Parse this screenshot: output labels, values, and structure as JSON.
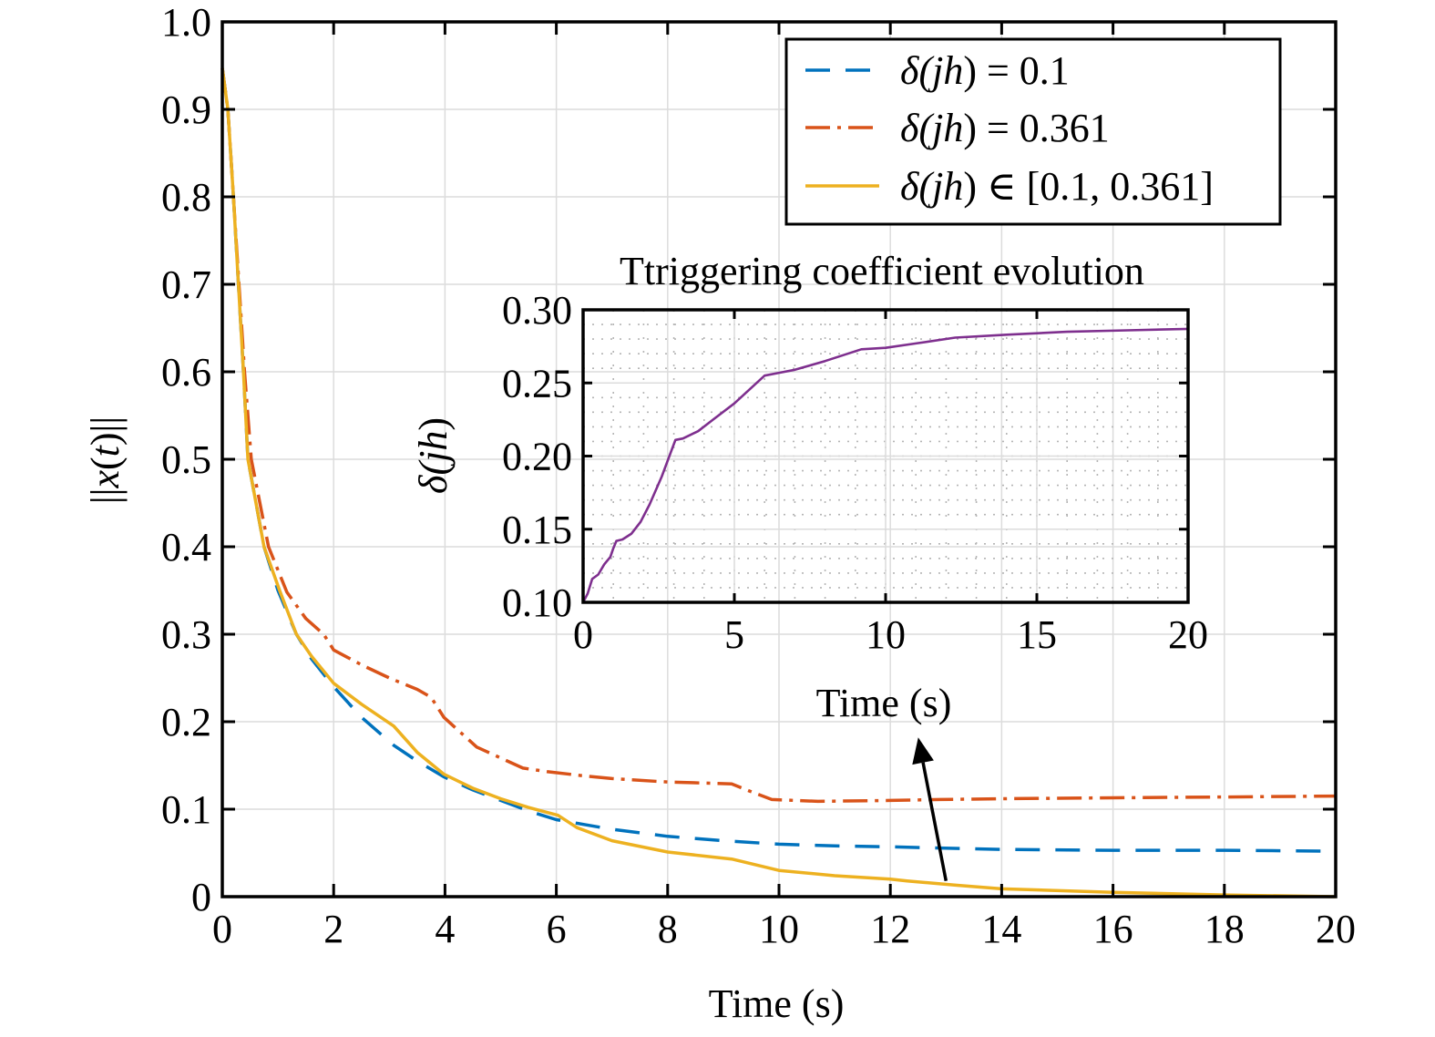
{
  "chart_data": [
    {
      "id": "main",
      "type": "line",
      "title": "",
      "xlabel": "Time (s)",
      "ylabel": "||x(t)||",
      "xlim": [
        0,
        20
      ],
      "ylim": [
        0,
        1.0
      ],
      "xticks": [
        0,
        2,
        4,
        6,
        8,
        10,
        12,
        14,
        16,
        18,
        20
      ],
      "xtick_labels": [
        "0",
        "2",
        "4",
        "6",
        "8",
        "10",
        "12",
        "14",
        "16",
        "18",
        "20"
      ],
      "yticks": [
        0,
        0.1,
        0.2,
        0.3,
        0.4,
        0.5,
        0.6,
        0.7,
        0.8,
        0.9,
        1.0
      ],
      "ytick_labels": [
        "0",
        "0.1",
        "0.2",
        "0.3",
        "0.4",
        "0.5",
        "0.6",
        "0.7",
        "0.8",
        "0.9",
        "1.0"
      ],
      "grid": true,
      "legend": {
        "placement": "top-right",
        "entries": [
          {
            "series": "delta_fixed_low",
            "label_prefix": "δ(",
            "label_var": "jh",
            "label_suffix": ") = 0.1"
          },
          {
            "series": "delta_fixed_high",
            "label_prefix": "δ(",
            "label_var": "jh",
            "label_suffix": ") = 0.361"
          },
          {
            "series": "delta_adaptive",
            "label_prefix": "δ(",
            "label_var": "jh",
            "label_suffix": ") ∈ [0.1, 0.361]"
          }
        ]
      },
      "series": [
        {
          "id": "delta_fixed_low",
          "name": "δ(jh) = 0.1",
          "color": "#0072BD",
          "style": "dashed",
          "x": [
            0,
            0.1,
            0.2,
            0.38,
            0.46,
            0.75,
            1.0,
            1.33,
            1.6,
            2.0,
            2.5,
            3.08,
            3.5,
            3.98,
            4.5,
            5.0,
            5.5,
            6.0,
            7.0,
            8.0,
            9.0,
            10.0,
            11.0,
            12.0,
            13.3,
            14.0,
            16.0,
            18.0,
            20.0
          ],
          "y": [
            0.947,
            0.9,
            0.8,
            0.6,
            0.5,
            0.4,
            0.35,
            0.3,
            0.272,
            0.24,
            0.205,
            0.173,
            0.155,
            0.137,
            0.122,
            0.11,
            0.098,
            0.088,
            0.077,
            0.069,
            0.064,
            0.06,
            0.058,
            0.057,
            0.055,
            0.054,
            0.053,
            0.053,
            0.052
          ]
        },
        {
          "id": "delta_fixed_high",
          "name": "δ(jh) = 0.361",
          "color": "#D95319",
          "style": "dashdot",
          "x": [
            0,
            0.1,
            0.2,
            0.4,
            0.52,
            0.83,
            1.16,
            1.5,
            1.82,
            2.0,
            2.5,
            3.0,
            3.5,
            3.75,
            3.98,
            4.57,
            5.4,
            5.83,
            6.5,
            7.0,
            8.0,
            9.15,
            9.5,
            9.87,
            10.7,
            12.0,
            12.9,
            14.0,
            16.0,
            18.0,
            20.0
          ],
          "y": [
            0.947,
            0.9,
            0.8,
            0.6,
            0.5,
            0.4,
            0.348,
            0.318,
            0.3,
            0.282,
            0.265,
            0.25,
            0.237,
            0.228,
            0.205,
            0.171,
            0.147,
            0.143,
            0.138,
            0.135,
            0.131,
            0.129,
            0.12,
            0.111,
            0.109,
            0.11,
            0.111,
            0.112,
            0.113,
            0.114,
            0.115
          ]
        },
        {
          "id": "delta_adaptive",
          "name": "δ(jh) ∈ [0.1, 0.361]",
          "color": "#EDB120",
          "style": "solid",
          "x": [
            0,
            0.1,
            0.2,
            0.38,
            0.46,
            0.75,
            1.03,
            1.33,
            1.6,
            2.0,
            2.5,
            3.08,
            3.5,
            3.98,
            4.5,
            5.0,
            5.5,
            6.03,
            6.37,
            7.0,
            8.0,
            9.15,
            10.0,
            11.0,
            12.0,
            12.3,
            13.2,
            14.0,
            16.0,
            18.0,
            20.0
          ],
          "y": [
            0.947,
            0.9,
            0.8,
            0.6,
            0.5,
            0.4,
            0.35,
            0.3,
            0.275,
            0.244,
            0.22,
            0.195,
            0.165,
            0.14,
            0.124,
            0.112,
            0.102,
            0.093,
            0.079,
            0.064,
            0.051,
            0.043,
            0.03,
            0.024,
            0.02,
            0.018,
            0.013,
            0.009,
            0.005,
            0.002,
            0.0
          ]
        }
      ],
      "annotation": {
        "type": "arrow",
        "from": [
          13.0,
          0.018
        ],
        "to": [
          12.5,
          0.182
        ]
      }
    },
    {
      "id": "inset",
      "type": "line",
      "title": "Ttriggering coefficient evolution",
      "xlabel": "Time (s)",
      "ylabel_prefix": "δ(",
      "ylabel_var": "jh",
      "ylabel_suffix": ")",
      "xlim": [
        0,
        20
      ],
      "ylim": [
        0.1,
        0.3
      ],
      "xticks": [
        0,
        5,
        10,
        15,
        20
      ],
      "xtick_labels": [
        "0",
        "5",
        "10",
        "15",
        "20"
      ],
      "yticks": [
        0.1,
        0.15,
        0.2,
        0.25,
        0.3
      ],
      "ytick_labels": [
        "0.10",
        "0.15",
        "0.20",
        "0.25",
        "0.30"
      ],
      "grid": true,
      "minor_grid": "dotted",
      "series": [
        {
          "id": "delta_evolution",
          "name": "δ(jh)",
          "color": "#7E2F8E",
          "style": "solid",
          "x": [
            0,
            0.15,
            0.3,
            0.5,
            0.7,
            0.9,
            1.0,
            1.1,
            1.3,
            1.6,
            1.9,
            2.2,
            2.6,
            3.05,
            3.3,
            3.8,
            4.3,
            5.0,
            6.0,
            6.5,
            7.0,
            8.0,
            9.2,
            10.0,
            11.0,
            12.3,
            14.0,
            16.0,
            18.0,
            20.0
          ],
          "y": [
            0.1,
            0.106,
            0.116,
            0.119,
            0.126,
            0.131,
            0.137,
            0.142,
            0.143,
            0.147,
            0.155,
            0.167,
            0.186,
            0.211,
            0.212,
            0.217,
            0.225,
            0.236,
            0.255,
            0.257,
            0.259,
            0.265,
            0.273,
            0.274,
            0.277,
            0.281,
            0.283,
            0.285,
            0.286,
            0.287
          ]
        }
      ]
    }
  ]
}
